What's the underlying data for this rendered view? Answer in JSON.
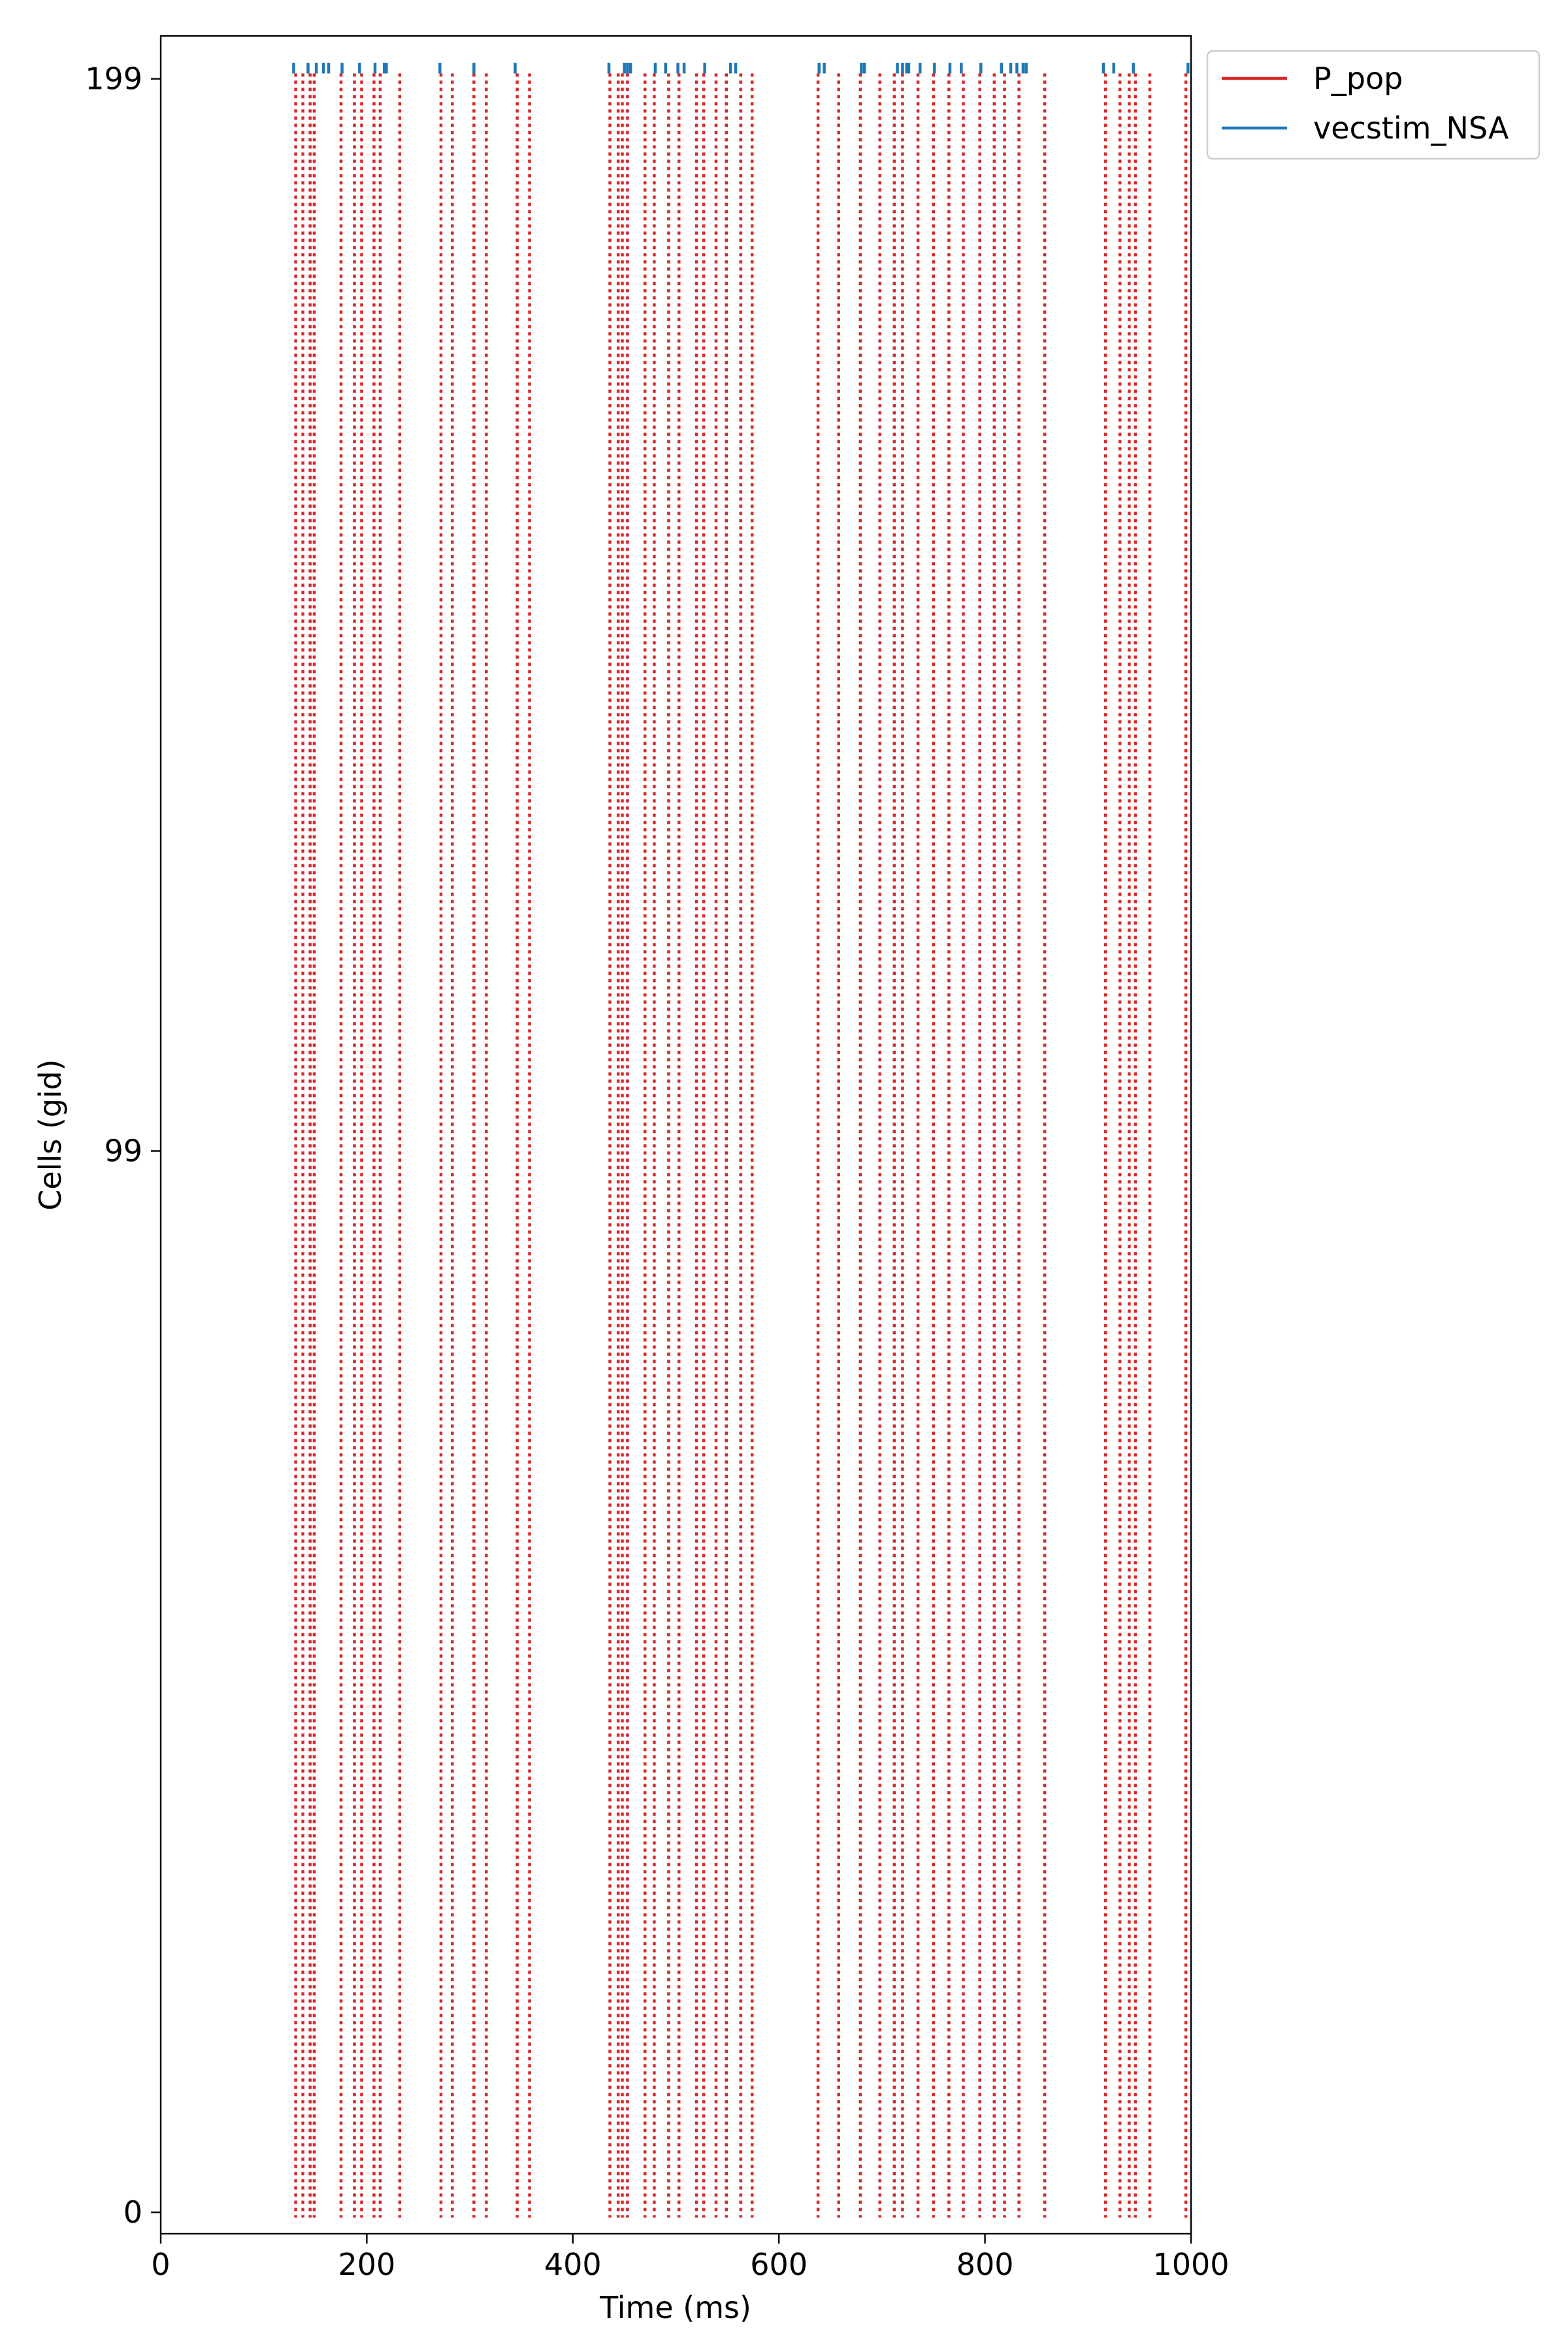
{
  "chart_data": {
    "type": "raster",
    "xlabel": "Time (ms)",
    "ylabel": "Cells (gid)",
    "xlim": [
      0,
      1000
    ],
    "ylim": [
      -2,
      203
    ],
    "xticks": [
      0,
      200,
      400,
      600,
      800,
      1000
    ],
    "xtick_labels": [
      "0",
      "200",
      "400",
      "600",
      "800",
      "1000"
    ],
    "yticks": [
      0,
      99,
      199
    ],
    "ytick_labels": [
      "0",
      "99",
      "199"
    ],
    "legend": {
      "placement": "outside-top-right"
    },
    "series": [
      {
        "name": "P_pop",
        "color": "#d62728",
        "line_style": "dotted",
        "gid_range": [
          0,
          199
        ],
        "spike_times": [
          131,
          138,
          145,
          149,
          175,
          188,
          195,
          207,
          213,
          232,
          272,
          283,
          304,
          316,
          346,
          358,
          436,
          444,
          448,
          453,
          470,
          479,
          493,
          503,
          520,
          527,
          539,
          549,
          563,
          574,
          638,
          658,
          679,
          698,
          712,
          720,
          735,
          750,
          765,
          779,
          795,
          809,
          819,
          833,
          858,
          917,
          931,
          940,
          946,
          960,
          995
        ]
      },
      {
        "name": "vecstim_NSA",
        "color": "#1f77b4",
        "line_style": "solid",
        "gid": 200,
        "spike_times": [
          129,
          143,
          151,
          158,
          163,
          176,
          193,
          208,
          217,
          219,
          271,
          304,
          344,
          435,
          450,
          453,
          456,
          480,
          490,
          502,
          508,
          528,
          553,
          558,
          639,
          644,
          680,
          683,
          715,
          720,
          724,
          726,
          737,
          751,
          766,
          777,
          796,
          816,
          825,
          831,
          837,
          840,
          915,
          925,
          944,
          997
        ]
      }
    ]
  }
}
